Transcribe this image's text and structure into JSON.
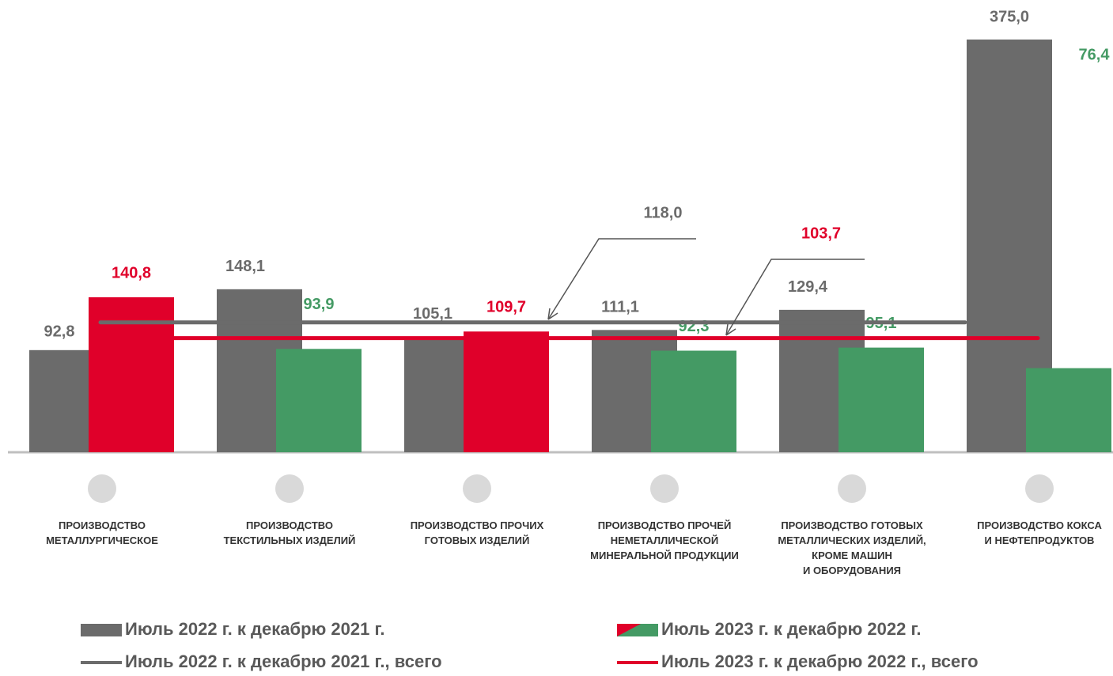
{
  "chart_data": {
    "type": "bar",
    "categories": [
      "ПРОИЗВОДСТВО\nМЕТАЛЛУРГИЧЕСКОЕ",
      "ПРОИЗВОДСТВО\nТЕКСТИЛЬНЫХ ИЗДЕЛИЙ",
      "ПРОИЗВОДСТВО ПРОЧИХ\nГОТОВЫХ ИЗДЕЛИЙ",
      "ПРОИЗВОДСТВО ПРОЧЕЙ\nНЕМЕТАЛЛИЧЕСКОЙ\nМИНЕРАЛЬНОЙ ПРОДУКЦИИ",
      "ПРОИЗВОДСТВО ГОТОВЫХ\nМЕТАЛЛИЧЕСКИХ ИЗДЕЛИЙ,\nКРОМЕ МАШИН\nИ ОБОРУДОВАНИЯ",
      "ПРОИЗВОДСТВО КОКСА\nИ НЕФТЕПРОДУКТОВ"
    ],
    "series": [
      {
        "name": "Июль 2022 г. к декабрю 2021 г.",
        "color": "#6b6b6b",
        "label_color": "#6b6b6b",
        "values": [
          92.8,
          148.1,
          105.1,
          111.1,
          129.4,
          375.0
        ],
        "value_labels": [
          "92,8",
          "148,1",
          "105,1",
          "111,1",
          "129,4",
          "375,0"
        ]
      },
      {
        "name": "Июль 2023 г. к декабрю 2022 г.",
        "colors": [
          "#e0002a",
          "#449a64",
          "#e0002a",
          "#449a64",
          "#449a64",
          "#449a64"
        ],
        "values": [
          140.8,
          93.9,
          109.7,
          92.3,
          95.1,
          76.4
        ],
        "value_labels": [
          "140,8",
          "93,9",
          "109,7",
          "92,3",
          "95,1",
          "76,4"
        ]
      }
    ],
    "lines": [
      {
        "name": "Июль 2022 г. к декабрю 2021 г., всего",
        "color": "#6b6b6b",
        "value": 118.0,
        "value_label": "118,0"
      },
      {
        "name": "Июль 2023 г. к декабрю 2022 г., всего",
        "color": "#e0002a",
        "value": 103.7,
        "value_label": "103,7"
      }
    ]
  }
}
